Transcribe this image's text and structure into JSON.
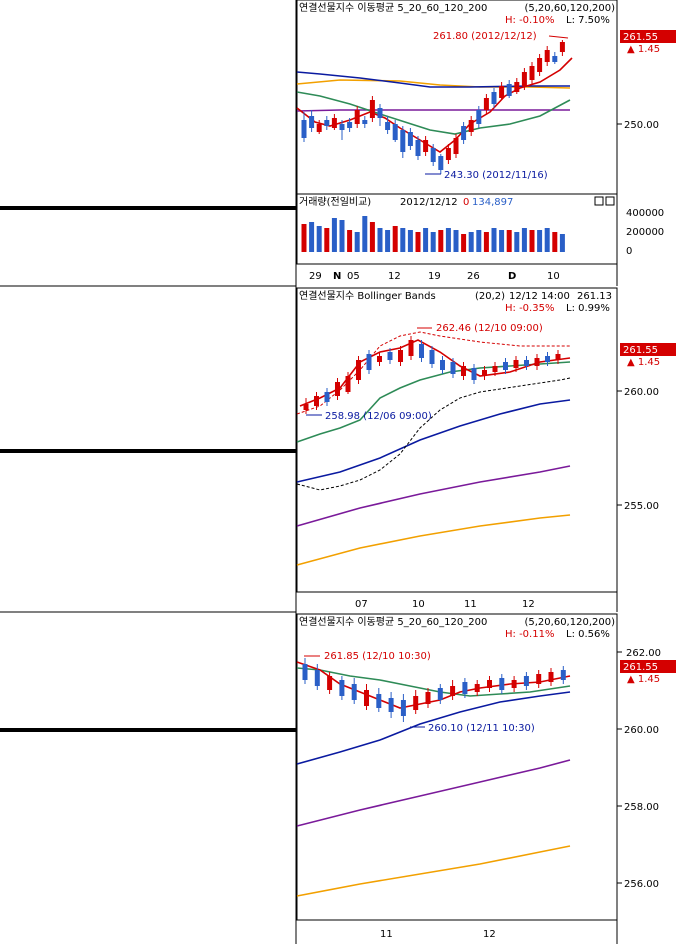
{
  "colors": {
    "up": "#d40000",
    "down": "#2a5fc7",
    "ma5": "#d40000",
    "ma20": "#2e8b57",
    "ma60": "#0a1aa0",
    "ma120": "#7a1a9a",
    "ma200": "#f2a000",
    "badge": "#d40000"
  },
  "chart_data": [
    {
      "type": "candlestick",
      "title": "연결선물지수 이동평균 5_20_60_120_200",
      "params": "(5,20,60,120,200)",
      "hl_text": {
        "h": "H: -0.10%",
        "l": "L: 7.50%"
      },
      "last_price": "261.55",
      "change": "▲ 1.45",
      "y_ticks": [
        "250.00"
      ],
      "x_ticks": [
        "29",
        "N",
        "05",
        "12",
        "19",
        "26",
        "D",
        "10"
      ],
      "annotations": {
        "high": "261.80 (2012/12/12)",
        "low": "243.30 (2012/11/16)"
      },
      "volume": {
        "label": "거래량(전일비교)",
        "date": "2012/12/12",
        "change": "0",
        "value": "134,897",
        "y_ticks": [
          "400000",
          "200000",
          "0"
        ]
      }
    },
    {
      "type": "candlestick",
      "title": "연결선물지수 Bollinger Bands",
      "params": "(20,2)",
      "datetime": "12/12 14:00",
      "value_text": "261.13",
      "hl_text": {
        "h": "H: -0.35%",
        "l": "L: 0.99%"
      },
      "last_price": "261.55",
      "change": "▲ 1.45",
      "y_ticks": [
        "260.00",
        "255.00"
      ],
      "x_ticks": [
        "07",
        "10",
        "11",
        "12"
      ],
      "annotations": {
        "high": "262.46 (12/10 09:00)",
        "low": "258.98 (12/06 09:00)"
      }
    },
    {
      "type": "candlestick",
      "title": "연결선물지수 이동평균 5_20_60_120_200",
      "params": "(5,20,60,120,200)",
      "hl_text": {
        "h": "H: -0.11%",
        "l": "L: 0.56%"
      },
      "last_price": "261.55",
      "change": "▲ 1.45",
      "y_ticks": [
        "262.00",
        "260.00",
        "258.00",
        "256.00"
      ],
      "x_ticks": [
        "11",
        "12"
      ],
      "annotations": {
        "high": "261.85 (12/10 10:30)",
        "low": "260.10 (12/11 10:30)"
      }
    }
  ]
}
